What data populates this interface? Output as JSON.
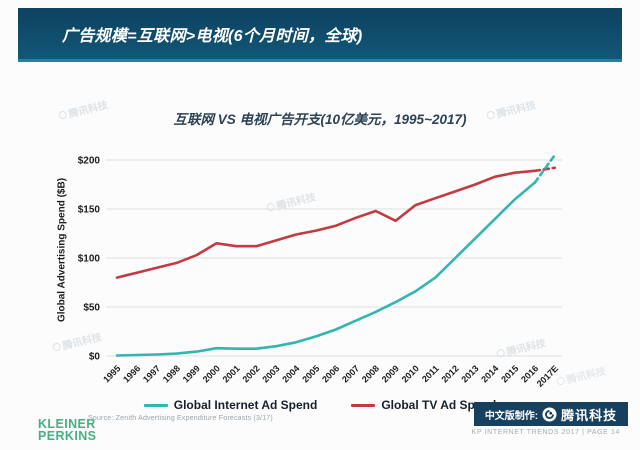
{
  "banner": {
    "title": "广告规模=互联网>电视(6个月时间，全球)"
  },
  "chart_data": {
    "type": "line",
    "title": "互联网 VS 电视广告开支(10亿美元，1995~2017)",
    "ylabel": "Global Advertising Spend ($B)",
    "ylim": [
      0,
      200
    ],
    "ytick_values": [
      0,
      50,
      100,
      150,
      200
    ],
    "yticks": [
      "$0",
      "$50",
      "$100",
      "$150",
      "$200"
    ],
    "grid": true,
    "legend_position": "bottom",
    "categories": [
      "1995",
      "1996",
      "1997",
      "1998",
      "1999",
      "2000",
      "2001",
      "2002",
      "2003",
      "2004",
      "2005",
      "2006",
      "2007",
      "2008",
      "2009",
      "2010",
      "2011",
      "2012",
      "2013",
      "2014",
      "2015",
      "2016",
      "2017E"
    ],
    "series": [
      {
        "name": "Global Internet Ad Spend",
        "color": "#34b5ae",
        "dashed_from": 21,
        "values": [
          0.5,
          1,
          1.5,
          2.5,
          4.5,
          8,
          7.5,
          7.5,
          10,
          14,
          20,
          27,
          36,
          45,
          55,
          66,
          80,
          100,
          120,
          140,
          160,
          177,
          205
        ]
      },
      {
        "name": "Global TV Ad Spend",
        "color": "#c23b43",
        "dashed_from": 21,
        "values": [
          80,
          85,
          90,
          95,
          103,
          115,
          112,
          112,
          118,
          124,
          128,
          133,
          141,
          148,
          138,
          154,
          161,
          168,
          175,
          183,
          187,
          189,
          192
        ]
      }
    ]
  },
  "footer": {
    "source": "Source: Zenith Advertising Expenditure Forecasts (3/17)",
    "kp_line1": "KLEINER",
    "kp_line2": "PERKINS",
    "credit_label": "中文版制作:",
    "credit_brand": "腾讯科技",
    "page_info": "KP INTERNET TRENDS 2017   |   PAGE 14"
  },
  "watermark": {
    "text": "腾讯科技"
  }
}
